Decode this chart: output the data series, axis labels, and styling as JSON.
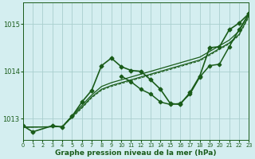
{
  "bg_color": "#d4eef0",
  "grid_color": "#aacece",
  "line_color": "#1a5c1a",
  "xlabel": "Graphe pression niveau de la mer (hPa)",
  "xlim": [
    0,
    23
  ],
  "ylim": [
    1012.55,
    1015.45
  ],
  "yticks": [
    1013,
    1014,
    1015
  ],
  "xticks": [
    0,
    1,
    2,
    3,
    4,
    5,
    6,
    7,
    8,
    9,
    10,
    11,
    12,
    13,
    14,
    15,
    16,
    17,
    18,
    19,
    20,
    21,
    22,
    23
  ],
  "series": {
    "wavy1": [
      1012.85,
      1012.72,
      null,
      1012.85,
      1012.82,
      1013.05,
      1013.35,
      1013.6,
      1014.12,
      1014.28,
      1014.1,
      1014.02,
      1014.0,
      1013.82,
      1013.62,
      1013.32,
      1013.3,
      1013.55,
      1013.9,
      1014.5,
      1014.52,
      1014.88,
      1015.02,
      1015.22
    ],
    "wavy2": [
      null,
      null,
      null,
      null,
      null,
      null,
      null,
      null,
      null,
      null,
      1013.9,
      1013.78,
      1013.62,
      1013.52,
      1013.35,
      1013.3,
      1013.32,
      1013.52,
      1013.88,
      1014.12,
      1014.15,
      1014.52,
      1014.88,
      1015.22
    ],
    "trend1": [
      1012.82,
      null,
      null,
      null,
      1012.83,
      1013.06,
      1013.28,
      1013.5,
      1013.68,
      1013.76,
      1013.82,
      1013.88,
      1013.94,
      1014.0,
      1014.06,
      1014.12,
      1014.18,
      1014.24,
      1014.3,
      1014.42,
      1014.54,
      1014.66,
      1014.85,
      1015.22
    ],
    "trend2": [
      1012.82,
      null,
      null,
      null,
      1012.83,
      1013.04,
      1013.24,
      1013.46,
      1013.62,
      1013.7,
      1013.76,
      1013.82,
      1013.88,
      1013.94,
      1014.0,
      1014.06,
      1014.12,
      1014.18,
      1014.24,
      1014.36,
      1014.48,
      1014.6,
      1014.78,
      1015.18
    ],
    "trend3": [
      1012.82,
      null,
      null,
      null,
      1012.83,
      1013.02,
      1013.22,
      1013.44,
      1013.6,
      1013.68,
      1013.74,
      1013.8,
      1013.86,
      1013.92,
      1013.98,
      1014.04,
      1014.1,
      1014.16,
      1014.22,
      1014.34,
      1014.46,
      1014.58,
      1014.76,
      1015.15
    ]
  }
}
